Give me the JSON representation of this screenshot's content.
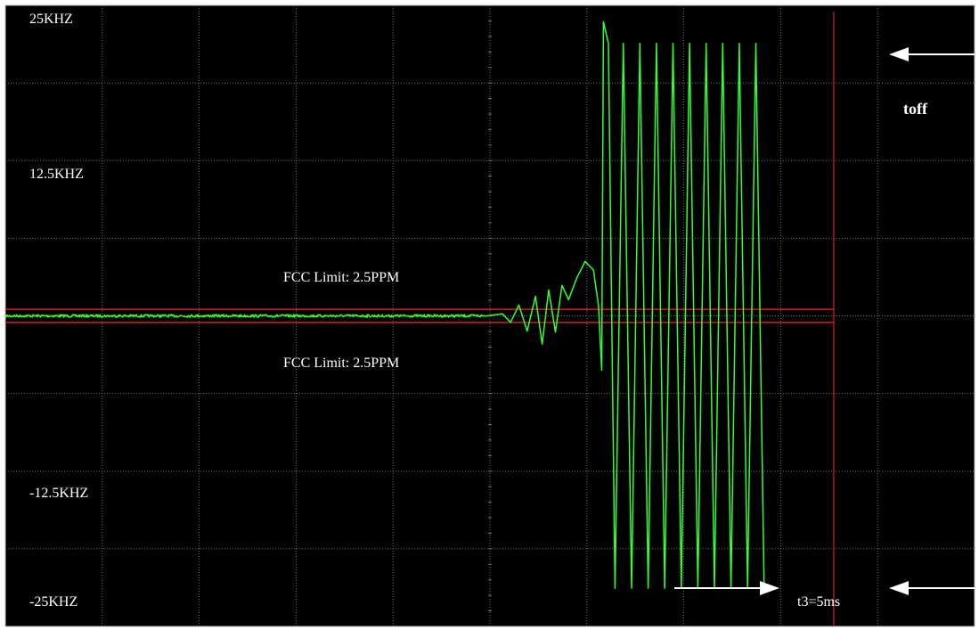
{
  "chart_data": {
    "type": "line",
    "title": "",
    "xlabel": "",
    "ylabel": "",
    "y_unit": "KHZ",
    "ylim": [
      -28.5,
      28.5
    ],
    "y_tick_labels": [
      {
        "label": "25KHZ",
        "value": 25
      },
      {
        "label": "12.5KHZ",
        "value": 12.5
      },
      {
        "label": "-12.5KHZ",
        "value": -12.5
      },
      {
        "label": "-25KHZ",
        "value": -25
      }
    ],
    "grid": true,
    "grid_divisions": {
      "x": 10,
      "y": 8
    },
    "x_markers": [
      {
        "name": "t3",
        "label": "t3=5ms",
        "value_ms": 5
      }
    ],
    "limits": [
      {
        "label": "FCC Limit: 2.5PPM",
        "value": 0.6
      },
      {
        "label": "FCC Limit: 2.5PPM",
        "value": -0.6
      }
    ],
    "annotations": [
      "toff"
    ],
    "series": [
      {
        "color": "#33ff33",
        "points": [
          [
            0.0,
            0.0
          ],
          [
            2.9,
            0.0
          ],
          [
            3.0,
            0.2
          ],
          [
            3.05,
            -0.6
          ],
          [
            3.1,
            1.0
          ],
          [
            3.15,
            -1.4
          ],
          [
            3.2,
            1.8
          ],
          [
            3.24,
            -2.6
          ],
          [
            3.28,
            2.4
          ],
          [
            3.32,
            -1.5
          ],
          [
            3.36,
            2.8
          ],
          [
            3.4,
            1.5
          ],
          [
            3.45,
            3.5
          ],
          [
            3.5,
            5.0
          ],
          [
            3.55,
            4.2
          ],
          [
            3.58,
            1.0
          ],
          [
            3.6,
            -5.0
          ],
          [
            3.61,
            27.0
          ],
          [
            3.64,
            25.0
          ],
          [
            3.68,
            -25.0
          ],
          [
            3.73,
            25.0
          ],
          [
            3.78,
            -25.0
          ],
          [
            3.83,
            25.0
          ],
          [
            3.88,
            -25.0
          ],
          [
            3.93,
            25.0
          ],
          [
            3.98,
            -25.0
          ],
          [
            4.03,
            25.0
          ],
          [
            4.08,
            -25.0
          ],
          [
            4.13,
            25.0
          ],
          [
            4.18,
            -25.0
          ],
          [
            4.23,
            25.0
          ],
          [
            4.28,
            -25.0
          ],
          [
            4.33,
            25.0
          ],
          [
            4.38,
            -25.0
          ],
          [
            4.43,
            25.0
          ],
          [
            4.48,
            -25.0
          ],
          [
            4.53,
            25.0
          ],
          [
            4.58,
            -25.0
          ]
        ]
      }
    ]
  },
  "colors": {
    "background": "#000000",
    "grid": "#707070",
    "trace": "#33ff33",
    "limit": "#d01f1f",
    "text": "#ffffff"
  }
}
